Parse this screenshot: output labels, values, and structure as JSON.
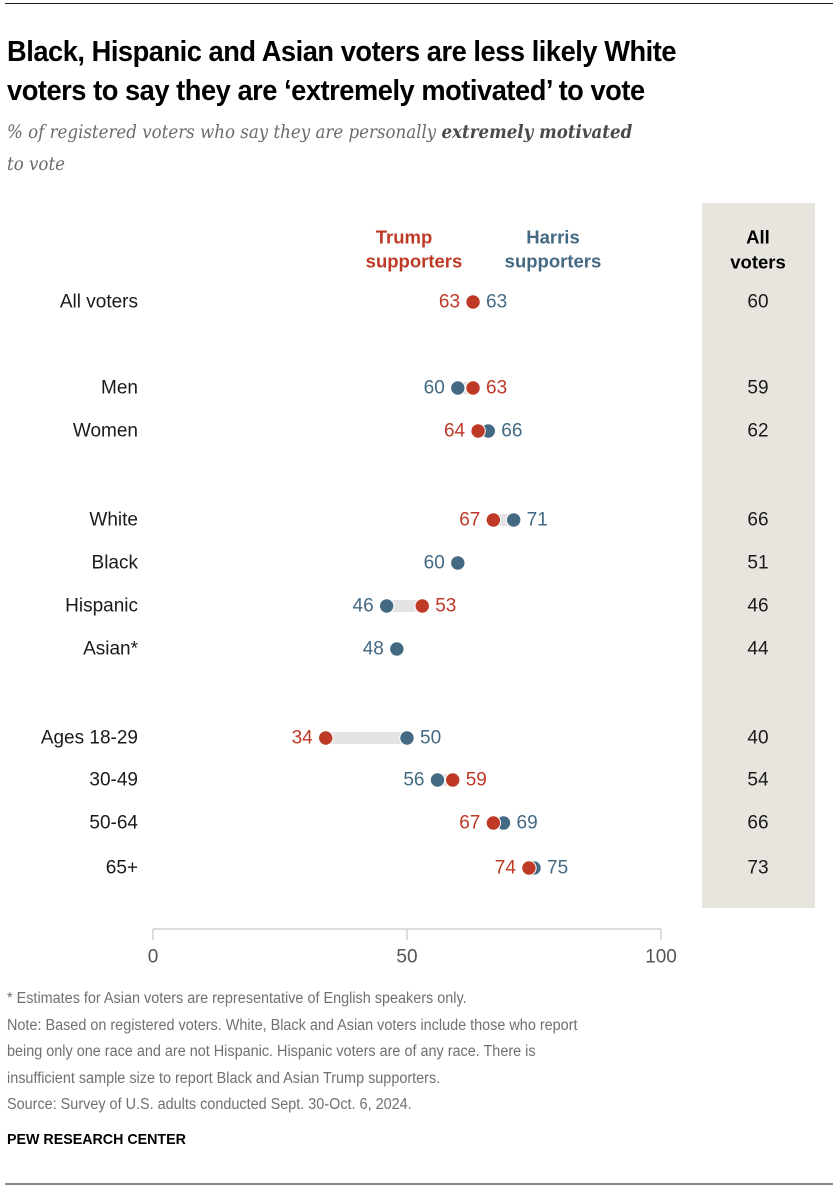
{
  "header": {
    "title_line1": "Black, Hispanic and Asian voters are less likely White",
    "title_line2": "voters to say they are ‘extremely motivated’ to vote",
    "subtitle_plain": "% of registered voters who say they are personally ",
    "subtitle_bold": "extremely motivated",
    "subtitle_end": "to vote"
  },
  "chart_data": {
    "type": "dot-plot",
    "title": "Black, Hispanic and Asian voters are less likely White voters to say they are ‘extremely motivated’ to vote",
    "subtitle": "% of registered voters who say they are personally extremely motivated to vote",
    "xlim": [
      0,
      100
    ],
    "x_ticks": [
      0,
      50,
      100
    ],
    "series": [
      {
        "name": "Trump supporters",
        "label_line1": "Trump",
        "label_line2": "supporters",
        "color": "#bf3927"
      },
      {
        "name": "Harris supporters",
        "label_line1": "Harris",
        "label_line2": "supporters",
        "color": "#436983"
      }
    ],
    "all_voters_header_line1": "All",
    "all_voters_header_line2": "voters",
    "panel_color": "#e8e5df",
    "connector_color": "#e3e3e3",
    "rows": [
      {
        "label": "All voters",
        "group": 0,
        "trump": 63,
        "harris": 63,
        "all": 60
      },
      {
        "label": "Men",
        "group": 1,
        "trump": 63,
        "harris": 60,
        "all": 59
      },
      {
        "label": "Women",
        "group": 1,
        "trump": 64,
        "harris": 66,
        "all": 62
      },
      {
        "label": "White",
        "group": 2,
        "trump": 67,
        "harris": 71,
        "all": 66
      },
      {
        "label": "Black",
        "group": 2,
        "trump": null,
        "harris": 60,
        "all": 51
      },
      {
        "label": "Hispanic",
        "group": 2,
        "trump": 53,
        "harris": 46,
        "all": 46
      },
      {
        "label": "Asian*",
        "group": 2,
        "trump": null,
        "harris": 48,
        "all": 44
      },
      {
        "label": "Ages 18-29",
        "group": 3,
        "trump": 34,
        "harris": 50,
        "all": 40
      },
      {
        "label": "30-49",
        "group": 3,
        "trump": 59,
        "harris": 56,
        "all": 54
      },
      {
        "label": "50-64",
        "group": 3,
        "trump": 67,
        "harris": 69,
        "all": 66
      },
      {
        "label": "65+",
        "group": 3,
        "trump": 74,
        "harris": 75,
        "all": 73
      }
    ]
  },
  "notes": {
    "asterisk": "* Estimates for Asian voters are representative of English speakers only.",
    "note_line1": "Note: Based on registered voters. White, Black and Asian voters include those who report",
    "note_line2": "being only one race and are not Hispanic. Hispanic voters are of any race. There is",
    "note_line3": "insufficient sample size to report Black and Asian Trump supporters.",
    "source": "Source: Survey of U.S. adults conducted Sept. 30-Oct. 6, 2024."
  },
  "brand": "PEW RESEARCH CENTER"
}
